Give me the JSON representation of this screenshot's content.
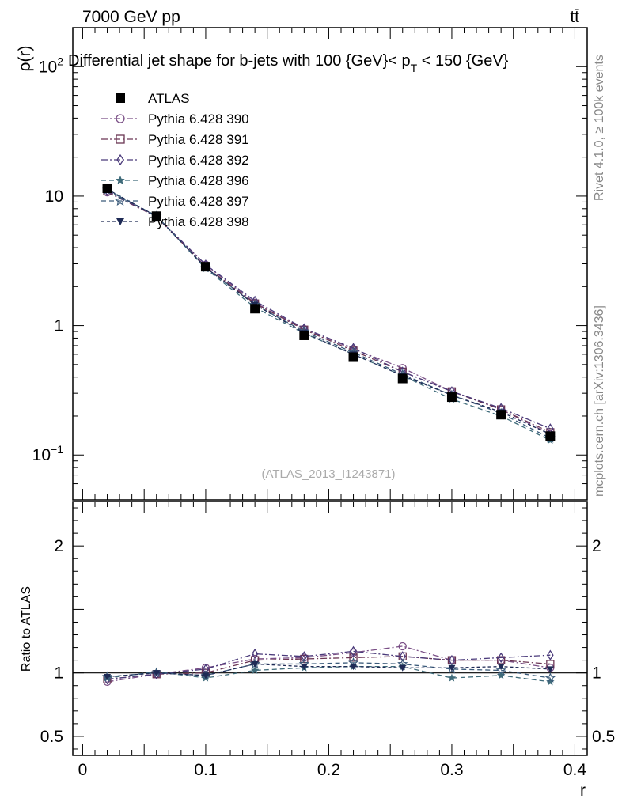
{
  "header": {
    "energy_label": "7000 GeV pp",
    "process_label": "tt̄"
  },
  "side_labels": {
    "rivet": "Rivet 4.1.0, ≥ 100k events",
    "mcplots": "mcplots.cern.ch [arXiv:1306.3436]"
  },
  "colors": {
    "atlas": "#000000",
    "p390": "#7a4f86",
    "p391": "#6a3553",
    "p392": "#4a3a7a",
    "p396": "#3f6b7a",
    "p397": "#3a5a7a",
    "p398": "#1e2a55"
  },
  "chart_data": [
    {
      "type": "line",
      "title": "Differential jet shape for b-jets with 100 {GeV}< p_T < 150 {GeV}",
      "title_parts": {
        "prefix": "Differential jet shape for b-jets with 100 {GeV}< p",
        "subscript": "T",
        "suffix": " < 150 {GeV}"
      },
      "watermark": "(ATLAS_2013_I1243871)",
      "ylabel": "ρ(r)",
      "yscale": "log",
      "ylim": [
        0.045,
        200
      ],
      "xlim": [
        -0.008,
        0.41
      ],
      "y_ticks": [
        {
          "value": 100,
          "label": "10",
          "exp": "2"
        },
        {
          "value": 10,
          "label": "10",
          "exp": ""
        },
        {
          "value": 1,
          "label": "1",
          "exp": ""
        },
        {
          "value": 0.1,
          "label": "10",
          "exp": "−1"
        }
      ],
      "x": [
        0.02,
        0.06,
        0.1,
        0.14,
        0.18,
        0.22,
        0.26,
        0.3,
        0.34,
        0.38
      ],
      "series": [
        {
          "name": "ATLAS",
          "key": "atlas",
          "marker": "square-filled",
          "dash": "none",
          "values": [
            11.5,
            7.0,
            2.85,
            1.35,
            0.84,
            0.57,
            0.39,
            0.28,
            0.205,
            0.14
          ]
        },
        {
          "name": "Pythia 6.428 390",
          "key": "p390",
          "marker": "circle-open",
          "dash": "8,3,2,3",
          "values": [
            10.7,
            6.95,
            2.95,
            1.5,
            0.94,
            0.66,
            0.47,
            0.31,
            0.225,
            0.145
          ]
        },
        {
          "name": "Pythia 6.428 391",
          "key": "p391",
          "marker": "square-open",
          "dash": "8,3,2,3",
          "values": [
            10.9,
            6.9,
            2.85,
            1.48,
            0.93,
            0.64,
            0.44,
            0.31,
            0.225,
            0.15
          ]
        },
        {
          "name": "Pythia 6.428 392",
          "key": "p392",
          "marker": "diamond-open",
          "dash": "8,3,2,3",
          "values": [
            11.0,
            6.95,
            2.95,
            1.55,
            0.95,
            0.67,
            0.44,
            0.31,
            0.23,
            0.16
          ]
        },
        {
          "name": "Pythia 6.428 396",
          "key": "p396",
          "marker": "star-filled",
          "dash": "6,4",
          "values": [
            11.1,
            7.05,
            2.75,
            1.38,
            0.87,
            0.6,
            0.41,
            0.27,
            0.2,
            0.13
          ]
        },
        {
          "name": "Pythia 6.428 397",
          "key": "p397",
          "marker": "star-open",
          "dash": "6,4",
          "values": [
            11.2,
            7.0,
            2.8,
            1.45,
            0.9,
            0.62,
            0.42,
            0.29,
            0.21,
            0.135
          ]
        },
        {
          "name": "Pythia 6.428 398",
          "key": "p398",
          "marker": "triangle-down-filled",
          "dash": "4,3",
          "values": [
            11.3,
            7.0,
            2.8,
            1.45,
            0.88,
            0.6,
            0.41,
            0.29,
            0.215,
            0.145
          ]
        }
      ]
    },
    {
      "type": "line",
      "title": "",
      "ylabel": "Ratio to ATLAS",
      "xlabel": "r",
      "ylim": [
        0.35,
        2.35
      ],
      "xlim": [
        -0.008,
        0.41
      ],
      "y_ticks": [
        {
          "value": 0.5,
          "label": "0.5"
        },
        {
          "value": 1,
          "label": "1"
        },
        {
          "value": 2,
          "label": "2"
        }
      ],
      "x_ticks": [
        {
          "value": 0,
          "label": "0"
        },
        {
          "value": 0.1,
          "label": "0.1"
        },
        {
          "value": 0.2,
          "label": "0.2"
        },
        {
          "value": 0.3,
          "label": "0.3"
        },
        {
          "value": 0.4,
          "label": "0.4"
        }
      ],
      "x": [
        0.02,
        0.06,
        0.1,
        0.14,
        0.18,
        0.22,
        0.26,
        0.3,
        0.34,
        0.38
      ],
      "series": [
        {
          "name": "Pythia 6.428 390",
          "key": "p390",
          "marker": "circle-open",
          "dash": "8,3,2,3",
          "values": [
            0.93,
            0.99,
            1.04,
            1.11,
            1.12,
            1.16,
            1.21,
            1.1,
            1.1,
            1.04
          ]
        },
        {
          "name": "Pythia 6.428 391",
          "key": "p391",
          "marker": "square-open",
          "dash": "8,3,2,3",
          "values": [
            0.95,
            0.99,
            1.0,
            1.1,
            1.11,
            1.12,
            1.13,
            1.1,
            1.1,
            1.07
          ]
        },
        {
          "name": "Pythia 6.428 392",
          "key": "p392",
          "marker": "diamond-open",
          "dash": "8,3,2,3",
          "values": [
            0.95,
            0.99,
            1.03,
            1.15,
            1.13,
            1.17,
            1.13,
            1.1,
            1.12,
            1.14
          ]
        },
        {
          "name": "Pythia 6.428 396",
          "key": "p396",
          "marker": "star-filled",
          "dash": "6,4",
          "values": [
            0.96,
            1.01,
            0.96,
            1.02,
            1.04,
            1.05,
            1.05,
            0.96,
            0.98,
            0.93
          ]
        },
        {
          "name": "Pythia 6.428 397",
          "key": "p397",
          "marker": "star-open",
          "dash": "6,4",
          "values": [
            0.97,
            1.0,
            0.98,
            1.07,
            1.07,
            1.08,
            1.07,
            1.03,
            1.02,
            0.96
          ]
        },
        {
          "name": "Pythia 6.428 398",
          "key": "p398",
          "marker": "triangle-down-filled",
          "dash": "4,3",
          "values": [
            0.97,
            1.0,
            0.98,
            1.07,
            1.05,
            1.05,
            1.04,
            1.04,
            1.05,
            1.03
          ]
        }
      ]
    }
  ]
}
